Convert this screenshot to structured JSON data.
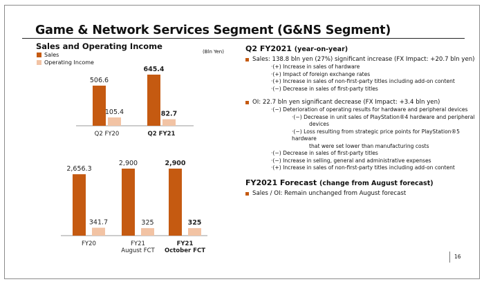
{
  "page": {
    "title": "Game & Network Services Segment (G&NS Segment)",
    "page_number": "16"
  },
  "left": {
    "heading": "Sales and Operating Income",
    "unit_note": "(Bln Yen)",
    "legend": [
      {
        "label": "Sales",
        "color": "#c55a11"
      },
      {
        "label": "Operating Income",
        "color": "#f2c3a4"
      }
    ]
  },
  "chart_data": [
    {
      "type": "bar",
      "categories": [
        "Q2 FY20",
        "Q2 FY21"
      ],
      "category_bold": [
        false,
        true
      ],
      "series": [
        {
          "name": "Sales",
          "values": [
            506.6,
            645.4
          ],
          "labels": [
            "506.6",
            "645.4"
          ],
          "label_bold": [
            false,
            true
          ]
        },
        {
          "name": "Operating Income",
          "values": [
            105.4,
            82.7
          ],
          "labels": [
            "105.4",
            "82.7"
          ],
          "label_bold": [
            false,
            true
          ]
        }
      ]
    },
    {
      "type": "bar",
      "categories": [
        [
          "FY20"
        ],
        [
          "FY21",
          "August FCT"
        ],
        [
          "FY21",
          "October FCT"
        ]
      ],
      "category_bold": [
        false,
        false,
        true
      ],
      "series": [
        {
          "name": "Sales",
          "values": [
            2656.3,
            2900,
            2900
          ],
          "labels": [
            "2,656.3",
            "2,900",
            "2,900"
          ],
          "label_bold": [
            false,
            false,
            true
          ]
        },
        {
          "name": "Operating Income",
          "values": [
            341.7,
            325,
            325
          ],
          "labels": [
            "341.7",
            "325",
            "325"
          ],
          "label_bold": [
            false,
            false,
            true
          ]
        }
      ]
    }
  ],
  "right": {
    "q2_heading": "Q2 FY2021",
    "q2_sub": "(year-on-year)",
    "sales_bullet": "Sales: 138.8 bln yen (27%) significant increase (FX Impact: +20.7 bln yen)",
    "sales_items": [
      "·(+) Increase in sales of hardware",
      "·(+) Impact of foreign exchange rates",
      "·(+) Increase in sales of non-first-party titles including add-on content",
      "·(−) Decrease in sales of first-party titles"
    ],
    "oi_bullet": "OI: 22.7 bln yen significant decrease (FX Impact: +3.4 bln yen)",
    "oi_item1": "·(−) Deterioration of operating results for hardware and peripheral devices",
    "oi_item1a_l1": "·(−) Decrease in unit sales of PlayStation®4 hardware and peripheral",
    "oi_item1a_l2": "devices",
    "oi_item1b_l1": "·(−) Loss resulting from strategic price points for PlayStation®5  hardware",
    "oi_item1b_l2": "that were set lower than manufacturing costs",
    "oi_items_rest": [
      "·(−) Decrease in sales of first-party titles",
      "·(−) Increase in selling, general and administrative expenses",
      "·(+) Increase in sales of non-first-party titles including add-on content"
    ],
    "fc_heading": "FY2021 Forecast",
    "fc_sub": "(change from August forecast)",
    "fc_bullet": "Sales / OI: Remain unchanged from August forecast"
  }
}
